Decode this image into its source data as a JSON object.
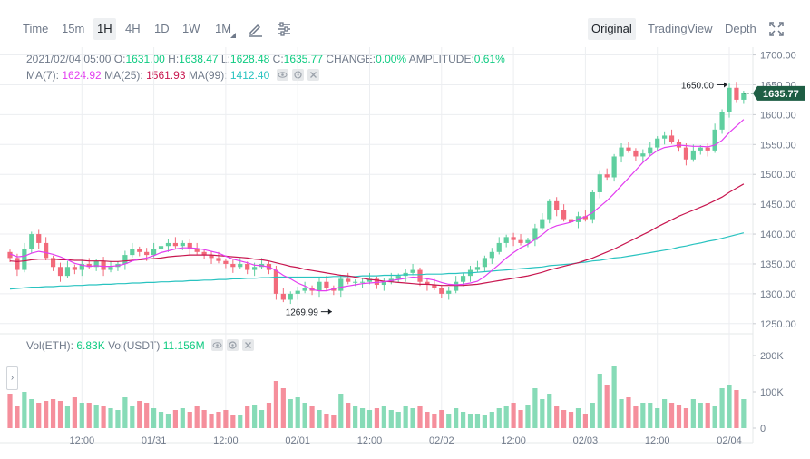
{
  "toolbar": {
    "timeframes": [
      "Time",
      "15m",
      "1H",
      "4H",
      "1D",
      "1W",
      "1M"
    ],
    "active_timeframe": "1H",
    "views": [
      "Original",
      "TradingView",
      "Depth"
    ],
    "active_view": "Original"
  },
  "ohlc_info": {
    "date": "2021/02/04 05:00",
    "o_label": "O:",
    "o": "1631.00",
    "h_label": "H:",
    "h": "1638.47",
    "l_label": "L:",
    "l": "1628.48",
    "c_label": "C:",
    "c": "1635.77",
    "change_label": "CHANGE:",
    "change": "0.00%",
    "amp_label": "AMPLITUDE:",
    "amp": "0.61%"
  },
  "ma_info": {
    "ma7_label": "MA(7):",
    "ma7": "1624.92",
    "ma25_label": "MA(25):",
    "ma25": "1561.93",
    "ma99_label": "MA(99):",
    "ma99": "1412.40"
  },
  "vol_info": {
    "eth_label": "Vol(ETH):",
    "eth": "6.83K",
    "usdt_label": "Vol(USDT)",
    "usdt": "11.156M"
  },
  "colors": {
    "up": "#5fcf9f",
    "down": "#f26a7b",
    "up_text": "#0ecb81",
    "ma7": "#e33ef0",
    "ma25": "#c8164f",
    "ma99": "#29c3c0",
    "last_price_bg": "#1e5e44",
    "grid": "#eceef1"
  },
  "chart_data": [
    {
      "type": "candlestick",
      "title": "",
      "x_ticks": [
        "12:00",
        "01/31",
        "12:00",
        "02/01",
        "12:00",
        "02/02",
        "12:00",
        "02/03",
        "12:00",
        "02/04"
      ],
      "y_ticks": [
        "1700.00",
        "1650.00",
        "1600.00",
        "1550.00",
        "1500.00",
        "1450.00",
        "1400.00",
        "1350.00",
        "1300.00",
        "1250.00"
      ],
      "ylim": [
        1233,
        1713
      ],
      "last_price": 1635.77,
      "last_price_label": "1635.77",
      "annotations": [
        {
          "label": "1650.00",
          "value": 1650,
          "index": 100
        },
        {
          "label": "1269.99",
          "value": 1270,
          "index": 45
        }
      ],
      "close": [
        1360,
        1340,
        1375,
        1400,
        1385,
        1360,
        1345,
        1330,
        1345,
        1340,
        1350,
        1345,
        1355,
        1340,
        1345,
        1350,
        1365,
        1375,
        1370,
        1365,
        1375,
        1380,
        1385,
        1380,
        1385,
        1375,
        1370,
        1365,
        1360,
        1355,
        1350,
        1345,
        1350,
        1340,
        1345,
        1350,
        1340,
        1300,
        1290,
        1300,
        1305,
        1310,
        1305,
        1320,
        1310,
        1305,
        1325,
        1320,
        1320,
        1320,
        1325,
        1315,
        1320,
        1325,
        1330,
        1335,
        1340,
        1320,
        1315,
        1310,
        1300,
        1305,
        1320,
        1330,
        1340,
        1345,
        1360,
        1370,
        1385,
        1395,
        1390,
        1385,
        1390,
        1410,
        1425,
        1455,
        1440,
        1425,
        1420,
        1430,
        1425,
        1470,
        1500,
        1495,
        1530,
        1545,
        1540,
        1530,
        1535,
        1545,
        1560,
        1565,
        1555,
        1545,
        1525,
        1540,
        1545,
        1540,
        1575,
        1605,
        1645,
        1625,
        1636
      ],
      "ma7": [
        1367,
        1362,
        1363,
        1368,
        1371,
        1369,
        1366,
        1362,
        1357,
        1351,
        1348,
        1346,
        1347,
        1346,
        1346,
        1347,
        1350,
        1355,
        1358,
        1360,
        1364,
        1369,
        1372,
        1375,
        1377,
        1377,
        1376,
        1374,
        1371,
        1368,
        1363,
        1358,
        1355,
        1352,
        1348,
        1347,
        1345,
        1339,
        1331,
        1325,
        1318,
        1313,
        1307,
        1305,
        1305,
        1308,
        1311,
        1313,
        1315,
        1317,
        1318,
        1319,
        1320,
        1322,
        1324,
        1326,
        1328,
        1327,
        1325,
        1323,
        1319,
        1316,
        1315,
        1316,
        1318,
        1321,
        1329,
        1339,
        1349,
        1360,
        1369,
        1377,
        1383,
        1391,
        1399,
        1409,
        1414,
        1417,
        1420,
        1425,
        1429,
        1436,
        1446,
        1456,
        1468,
        1481,
        1494,
        1507,
        1520,
        1531,
        1540,
        1545,
        1547,
        1549,
        1548,
        1547,
        1547,
        1546,
        1549,
        1557,
        1570,
        1581,
        1592
      ],
      "ma25": [
        1355,
        1354,
        1355,
        1357,
        1358,
        1358,
        1358,
        1357,
        1357,
        1356,
        1356,
        1355,
        1355,
        1355,
        1354,
        1354,
        1355,
        1356,
        1357,
        1358,
        1359,
        1360,
        1362,
        1363,
        1364,
        1365,
        1365,
        1365,
        1365,
        1364,
        1363,
        1362,
        1361,
        1360,
        1358,
        1357,
        1355,
        1352,
        1349,
        1346,
        1344,
        1341,
        1339,
        1337,
        1335,
        1333,
        1331,
        1330,
        1328,
        1326,
        1324,
        1323,
        1321,
        1320,
        1319,
        1318,
        1317,
        1316,
        1316,
        1315,
        1314,
        1314,
        1314,
        1314,
        1315,
        1316,
        1318,
        1320,
        1322,
        1324,
        1326,
        1328,
        1330,
        1333,
        1336,
        1340,
        1343,
        1346,
        1349,
        1352,
        1356,
        1360,
        1365,
        1370,
        1375,
        1381,
        1387,
        1393,
        1399,
        1405,
        1412,
        1418,
        1424,
        1430,
        1435,
        1440,
        1445,
        1450,
        1456,
        1462,
        1470,
        1477,
        1484
      ],
      "ma99": [
        1308,
        1309,
        1310,
        1311,
        1311,
        1312,
        1312,
        1313,
        1313,
        1314,
        1314,
        1315,
        1315,
        1316,
        1316,
        1317,
        1317,
        1318,
        1318,
        1319,
        1319,
        1320,
        1320,
        1321,
        1321,
        1322,
        1322,
        1323,
        1323,
        1324,
        1324,
        1325,
        1325,
        1326,
        1326,
        1327,
        1327,
        1328,
        1328,
        1328,
        1328,
        1328,
        1328,
        1328,
        1328,
        1329,
        1329,
        1329,
        1329,
        1330,
        1330,
        1330,
        1331,
        1331,
        1331,
        1332,
        1332,
        1332,
        1333,
        1333,
        1333,
        1334,
        1334,
        1335,
        1335,
        1336,
        1337,
        1338,
        1339,
        1340,
        1341,
        1342,
        1343,
        1344,
        1345,
        1347,
        1348,
        1349,
        1350,
        1352,
        1353,
        1355,
        1356,
        1358,
        1360,
        1361,
        1363,
        1365,
        1367,
        1369,
        1371,
        1373,
        1375,
        1378,
        1380,
        1383,
        1385,
        1388,
        1390,
        1393,
        1396,
        1399,
        1402
      ]
    },
    {
      "type": "bar",
      "title": "",
      "y_ticks": [
        "200K",
        "100K",
        "0"
      ],
      "ylim": [
        0,
        220
      ],
      "unit": "K",
      "values": [
        95,
        60,
        100,
        80,
        70,
        75,
        80,
        75,
        60,
        85,
        70,
        70,
        65,
        60,
        55,
        50,
        85,
        60,
        75,
        70,
        55,
        45,
        40,
        50,
        55,
        45,
        60,
        50,
        40,
        45,
        50,
        35,
        35,
        60,
        65,
        50,
        70,
        130,
        110,
        80,
        85,
        70,
        60,
        50,
        40,
        35,
        95,
        70,
        60,
        55,
        50,
        55,
        60,
        50,
        45,
        60,
        55,
        60,
        45,
        40,
        50,
        40,
        55,
        45,
        40,
        40,
        35,
        45,
        55,
        60,
        70,
        50,
        65,
        110,
        80,
        95,
        60,
        50,
        45,
        55,
        40,
        70,
        150,
        120,
        170,
        80,
        85,
        60,
        70,
        70,
        55,
        80,
        70,
        65,
        55,
        80,
        70,
        70,
        60,
        110,
        120,
        105,
        80
      ]
    }
  ]
}
